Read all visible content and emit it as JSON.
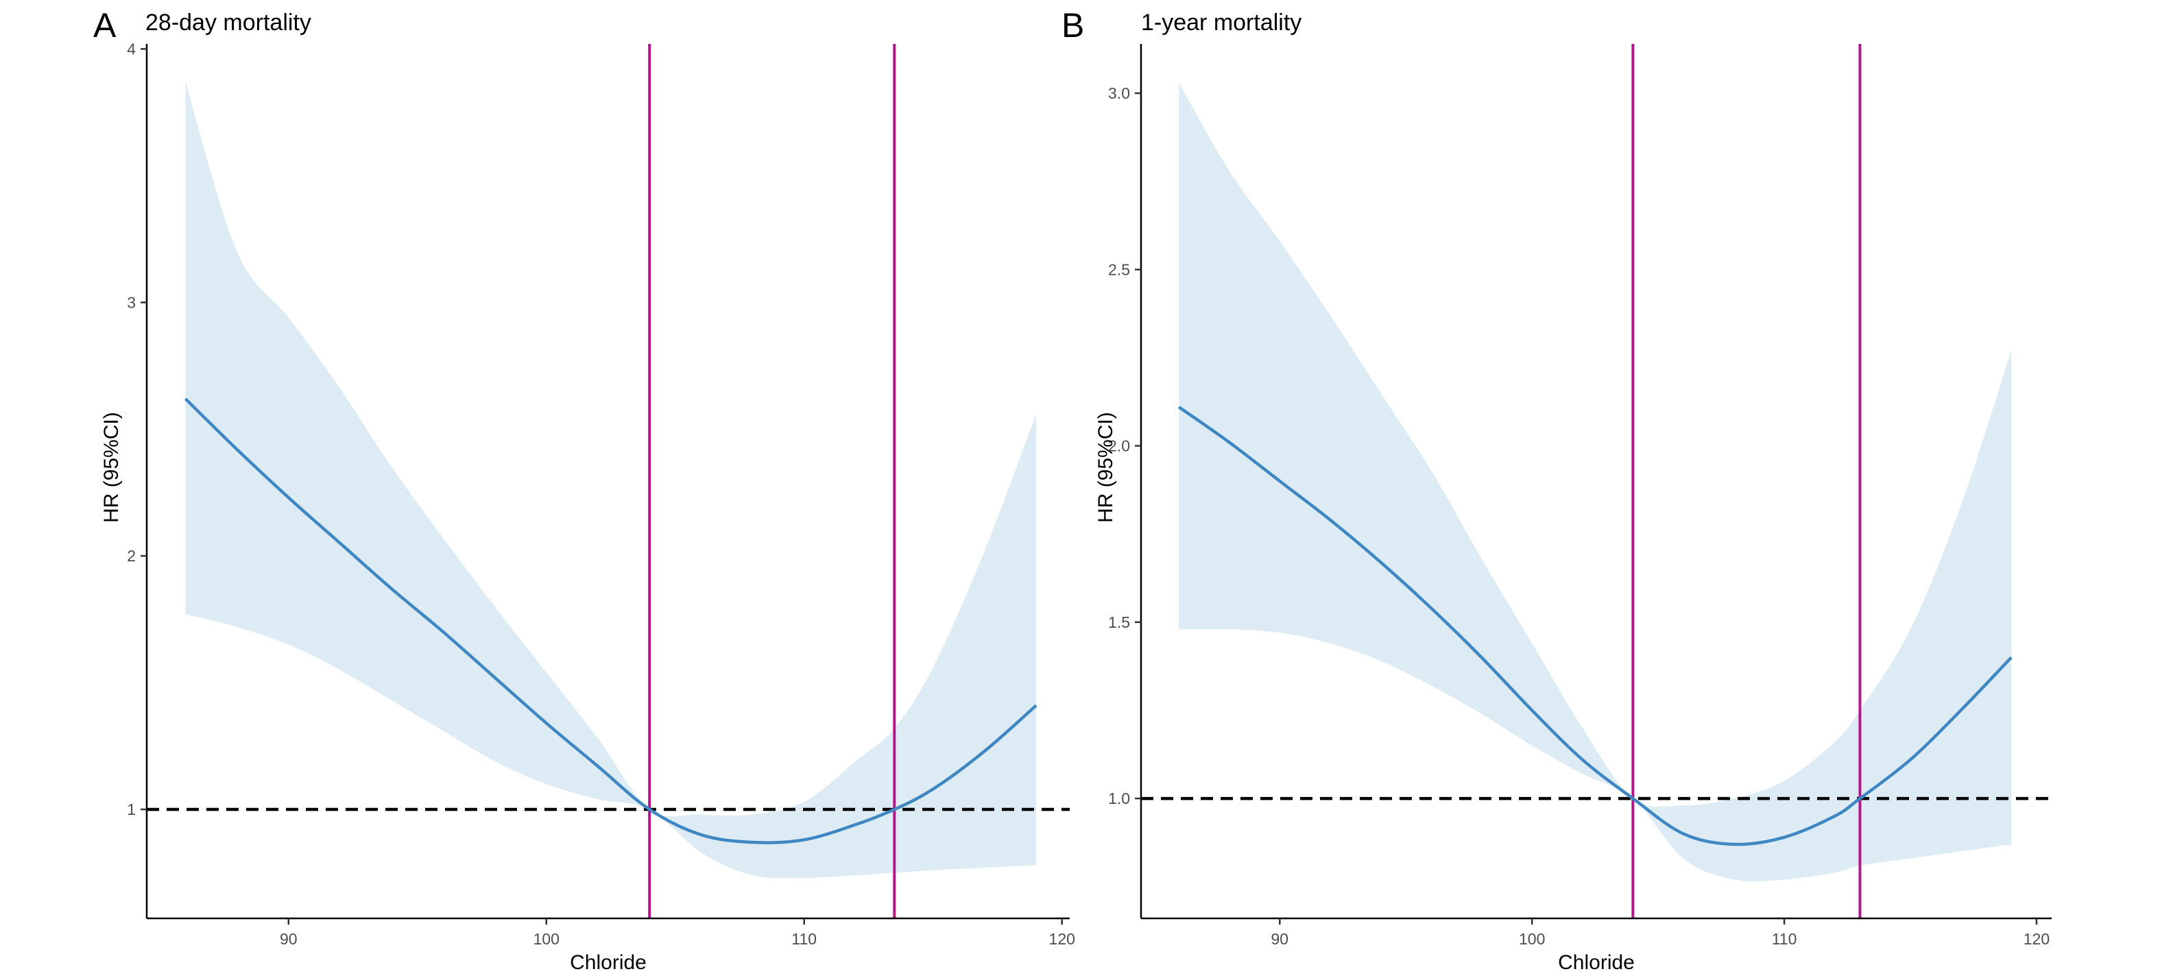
{
  "chart_data": [
    {
      "type": "line",
      "panel_label": "A",
      "title": "28-day mortality",
      "xlabel": "Chloride",
      "ylabel": "HR (95%CI)",
      "xlim": [
        84.5,
        120.3
      ],
      "ylim": [
        0.57,
        4.02
      ],
      "xticks": [
        90,
        100,
        110,
        120
      ],
      "yticks": [
        1,
        2,
        3,
        4
      ],
      "grid": false,
      "reference_line": {
        "y": 1,
        "style": "dashed",
        "color": "#000000"
      },
      "vertical_lines": {
        "x": [
          104,
          113.5
        ],
        "color": "#B5178A"
      },
      "series": [
        {
          "x": [
            86,
            88,
            90,
            92,
            94,
            96,
            98,
            100,
            102,
            104,
            106,
            108,
            110,
            112,
            113.5,
            115,
            117,
            119
          ],
          "hr": [
            2.62,
            2.42,
            2.23,
            2.05,
            1.87,
            1.7,
            1.52,
            1.34,
            1.17,
            1.0,
            0.9,
            0.87,
            0.88,
            0.94,
            1.0,
            1.08,
            1.23,
            1.41
          ],
          "lower": [
            1.77,
            1.72,
            1.65,
            1.55,
            1.43,
            1.31,
            1.19,
            1.1,
            1.04,
            1.0,
            0.83,
            0.74,
            0.73,
            0.74,
            0.75,
            0.76,
            0.77,
            0.78
          ],
          "upper": [
            3.87,
            3.2,
            2.94,
            2.66,
            2.35,
            2.07,
            1.8,
            1.54,
            1.28,
            1.0,
            0.98,
            0.98,
            1.03,
            1.19,
            1.32,
            1.56,
            2.02,
            2.56
          ],
          "line_color": "#3F87C3",
          "band_color": "#DCEBF4"
        }
      ]
    },
    {
      "type": "line",
      "panel_label": "B",
      "title": "1-year mortality",
      "xlabel": "Chloride",
      "ylabel": "HR (95%CI)",
      "xlim": [
        84.5,
        120.6
      ],
      "ylim": [
        0.66,
        3.14
      ],
      "xticks": [
        90,
        100,
        110,
        120
      ],
      "yticks": [
        1.0,
        1.5,
        2.0,
        2.5,
        3.0
      ],
      "ytick_labels": [
        "1.0",
        "1.5",
        "2.0",
        "2.5",
        "3.0"
      ],
      "grid": false,
      "reference_line": {
        "y": 1,
        "style": "dashed",
        "color": "#000000"
      },
      "vertical_lines": {
        "x": [
          104,
          113
        ],
        "color": "#B5178A"
      },
      "series": [
        {
          "x": [
            86,
            88,
            90,
            92,
            94,
            96,
            98,
            100,
            102,
            104,
            106,
            108,
            110,
            112,
            113,
            115,
            117,
            119
          ],
          "hr": [
            2.11,
            2.01,
            1.9,
            1.79,
            1.67,
            1.54,
            1.4,
            1.25,
            1.11,
            1.0,
            0.9,
            0.87,
            0.89,
            0.95,
            1.0,
            1.11,
            1.25,
            1.4
          ],
          "lower": [
            1.48,
            1.48,
            1.47,
            1.44,
            1.39,
            1.32,
            1.24,
            1.15,
            1.07,
            1.0,
            0.83,
            0.77,
            0.77,
            0.79,
            0.81,
            0.83,
            0.85,
            0.87
          ],
          "upper": [
            3.03,
            2.78,
            2.58,
            2.37,
            2.15,
            1.93,
            1.68,
            1.44,
            1.2,
            1.0,
            0.98,
            1.0,
            1.05,
            1.16,
            1.25,
            1.48,
            1.83,
            2.27
          ],
          "line_color": "#3F87C3",
          "band_color": "#DCEBF4"
        }
      ]
    }
  ]
}
